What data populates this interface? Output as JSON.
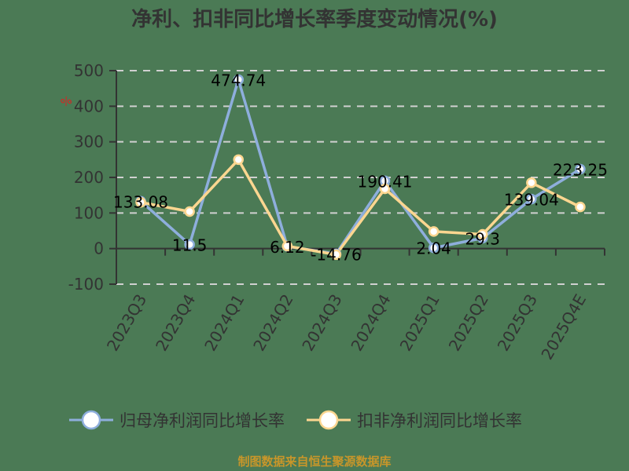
{
  "title": "净利、扣非同比增长率季度变动情况(%)",
  "unit_label": "%",
  "legend": [
    {
      "label": "归母净利润同比增长率",
      "color": "#8eaedc"
    },
    {
      "label": "扣非净利润同比增长率",
      "color": "#fcd690"
    }
  ],
  "source": "制图数据来自恒生聚源数据库",
  "colors": {
    "background": "#4b7a55",
    "series1": "#8eaedc",
    "series2": "#fcd690",
    "grid": "#d0d0d0",
    "axis": "#333333",
    "source_text": "#c8962a"
  },
  "chart_data": {
    "type": "line",
    "title": "净利、扣非同比增长率季度变动情况(%)",
    "xlabel": "",
    "ylabel": "%",
    "ylim": [
      -100,
      500
    ],
    "yticks": [
      500,
      400,
      300,
      200,
      100,
      0,
      -100
    ],
    "grid": true,
    "legend_position": "bottom",
    "categories": [
      "2023Q3",
      "2023Q4",
      "2024Q1",
      "2024Q2",
      "2024Q3",
      "2024Q4",
      "2025Q1",
      "2025Q2",
      "2025Q3",
      "2025Q4E"
    ],
    "series": [
      {
        "name": "归母净利润同比增长率",
        "values": [
          133.08,
          11.5,
          474.74,
          6.12,
          -14.76,
          190.41,
          2.04,
          29.3,
          139.04,
          223.25
        ],
        "labels": [
          "133.08",
          "11.5",
          "474.74",
          "6.12",
          "-14.76",
          "190.41",
          "2.04",
          "29.3",
          "139.04",
          "223.25"
        ]
      },
      {
        "name": "扣非净利润同比增长率",
        "values": [
          130,
          104,
          250,
          7,
          -17,
          168,
          48,
          40,
          185,
          117
        ]
      }
    ]
  }
}
